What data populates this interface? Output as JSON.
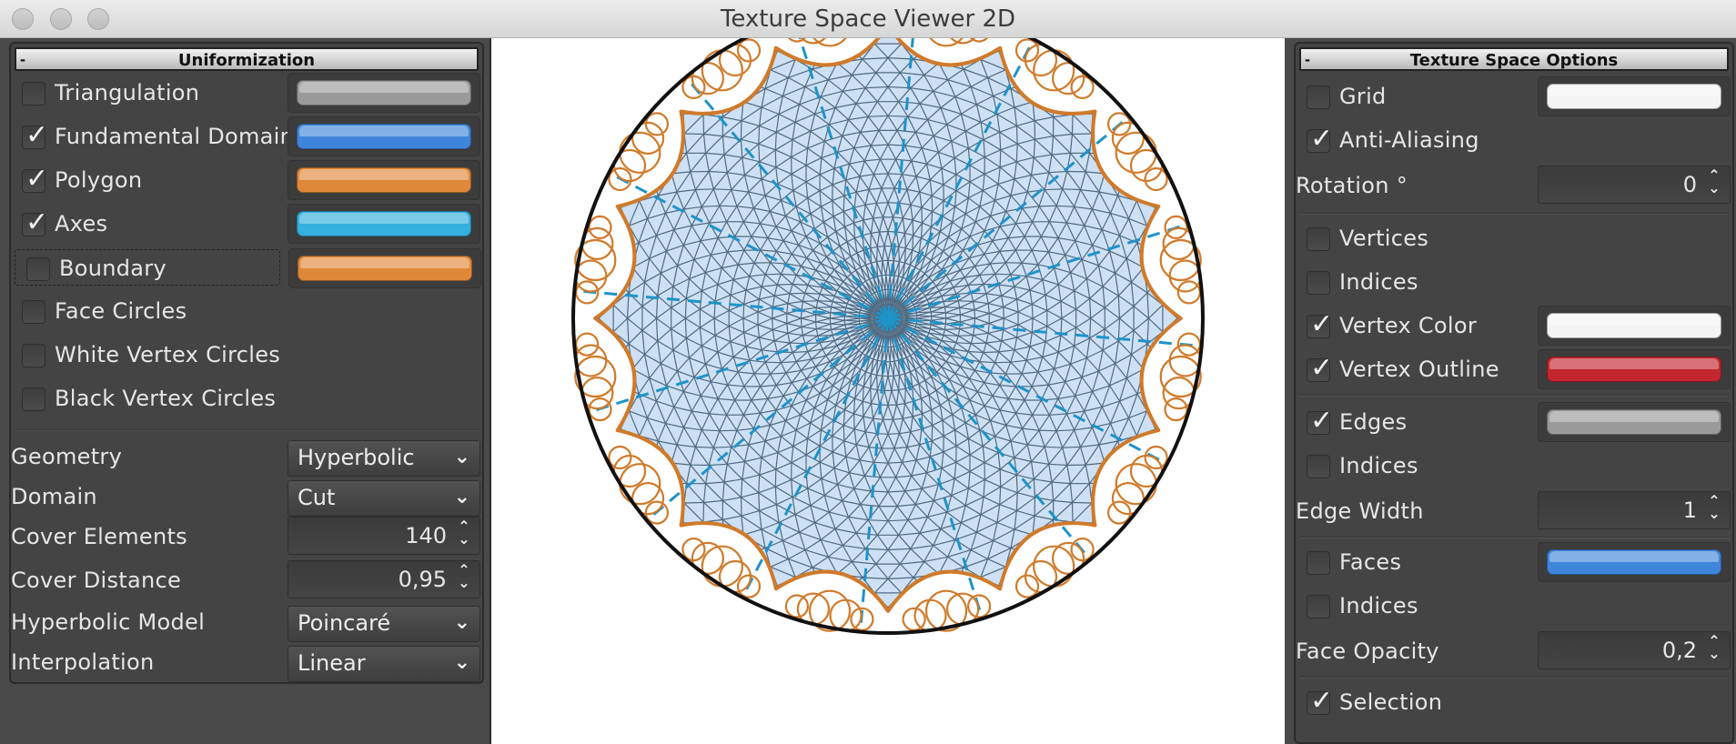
{
  "window": {
    "title": "Texture Space Viewer 2D"
  },
  "left_panel": {
    "header": {
      "collapse": "-",
      "title": "Uniformization"
    },
    "checkboxes": [
      {
        "label": "Triangulation",
        "checked": false,
        "color": "#9a9a9a"
      },
      {
        "label": "Fundamental Domain",
        "checked": true,
        "color": "#3f86db"
      },
      {
        "label": "Polygon",
        "checked": true,
        "color": "#e0883a"
      },
      {
        "label": "Axes",
        "checked": true,
        "color": "#34b0dc"
      },
      {
        "label": "Boundary",
        "checked": false,
        "color": "#e0883a"
      },
      {
        "label": "Face Circles",
        "checked": false
      },
      {
        "label": "White Vertex Circles",
        "checked": false
      },
      {
        "label": "Black Vertex Circles",
        "checked": false
      }
    ],
    "settings": [
      {
        "label": "Geometry",
        "kind": "select",
        "value": "Hyperbolic"
      },
      {
        "label": "Domain",
        "kind": "select",
        "value": "Cut"
      },
      {
        "label": "Cover Elements",
        "kind": "spin",
        "value": "140"
      },
      {
        "label": "Cover Distance",
        "kind": "spin",
        "value": "0,95"
      },
      {
        "label": "Hyperbolic Model",
        "kind": "select",
        "value": "Poincaré"
      },
      {
        "label": "Interpolation",
        "kind": "select",
        "value": "Linear"
      }
    ]
  },
  "right_panel": {
    "header": {
      "collapse": "-",
      "title": "Texture Space Options"
    },
    "grid": {
      "label": "Grid",
      "checked": false,
      "color": "#f4f4f4"
    },
    "anti_aliasing": {
      "label": "Anti-Aliasing",
      "checked": true
    },
    "rotation": {
      "label": "Rotation °",
      "value": "0"
    },
    "vertices": {
      "label": "Vertices",
      "checked": false
    },
    "vertex_indices": {
      "label": "Indices",
      "checked": false
    },
    "vertex_color": {
      "label": "Vertex Color",
      "checked": true,
      "color": "#f4f4f4"
    },
    "vertex_outline": {
      "label": "Vertex Outline",
      "checked": true,
      "color": "#c2262e"
    },
    "edges": {
      "label": "Edges",
      "checked": true,
      "color": "#9a9a9a"
    },
    "edge_indices": {
      "label": "Indices",
      "checked": false
    },
    "edge_width": {
      "label": "Edge Width",
      "value": "1"
    },
    "faces": {
      "label": "Faces",
      "checked": false,
      "color": "#3f86db"
    },
    "face_indices": {
      "label": "Indices",
      "checked": false
    },
    "face_opacity": {
      "label": "Face Opacity",
      "value": "0,2"
    },
    "selection": {
      "label": "Selection",
      "checked": true
    }
  },
  "viewer": {
    "polygon_sides": 16,
    "disk_color": "#111111",
    "polygon_color": "#d07a2a",
    "axes_color": "#1e93c9",
    "mesh_color": "#506a80",
    "fill_color": "#cde0f4"
  },
  "icons": {
    "close": "traffic-light-close-icon",
    "minimize": "traffic-light-minimize-icon",
    "zoom": "traffic-light-zoom-icon",
    "check": "checkmark-icon",
    "chevron": "chevron-down-icon",
    "spinner": "up-down-stepper-icon"
  }
}
